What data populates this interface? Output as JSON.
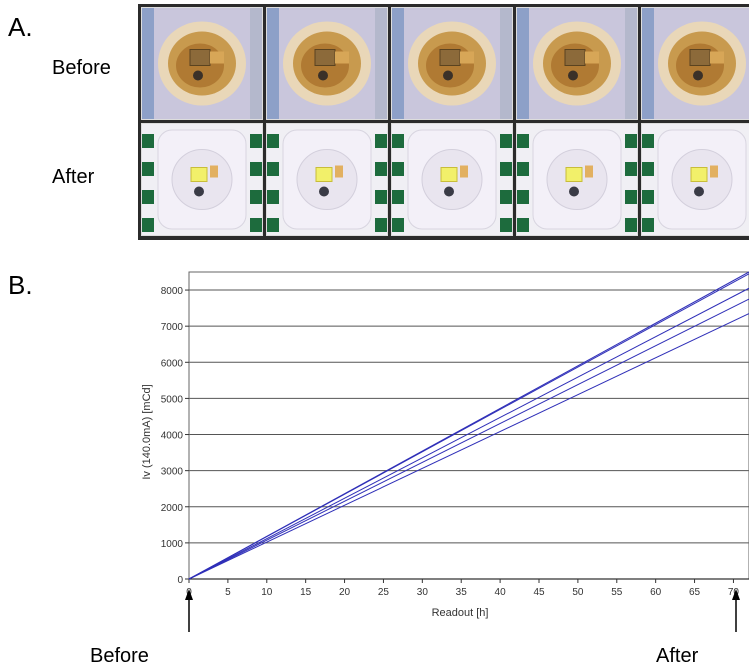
{
  "panels": {
    "a_label": "A.",
    "b_label": "B."
  },
  "photos": {
    "row_labels": [
      "Before",
      "After"
    ],
    "rows": [
      {
        "state": "before",
        "count": 5,
        "colors": {
          "ring": "#c89a4e",
          "center": "#b07a33",
          "chip": "#8c6a3a",
          "frame": "#8da0c8"
        }
      },
      {
        "state": "after",
        "count": 5,
        "colors": {
          "ring": "#f3f0f8",
          "center": "#e9e5ef",
          "chip": "#f2f06a",
          "frame": "#1d6b3d"
        }
      }
    ]
  },
  "arrows": {
    "before_label": "Before",
    "after_label": "After"
  },
  "chart_data": {
    "type": "line",
    "xlabel": "Readout [h]",
    "ylabel": "Iv (140.0mA) [mCd]",
    "xlim": [
      0,
      72
    ],
    "ylim": [
      0,
      8500
    ],
    "x_ticks": [
      0,
      5,
      10,
      15,
      20,
      25,
      30,
      35,
      40,
      45,
      50,
      55,
      60,
      65,
      70
    ],
    "y_ticks": [
      0,
      1000,
      2000,
      3000,
      4000,
      5000,
      6000,
      7000,
      8000
    ],
    "grid": "horizontal",
    "line_color": "#2f2fb8",
    "series": [
      {
        "x": [
          0,
          72
        ],
        "values": [
          0,
          8500
        ]
      },
      {
        "x": [
          0,
          72
        ],
        "values": [
          0,
          8450
        ]
      },
      {
        "x": [
          0,
          72
        ],
        "values": [
          0,
          8050
        ]
      },
      {
        "x": [
          0,
          72
        ],
        "values": [
          0,
          7750
        ]
      },
      {
        "x": [
          0,
          72
        ],
        "values": [
          0,
          7350
        ]
      }
    ]
  }
}
